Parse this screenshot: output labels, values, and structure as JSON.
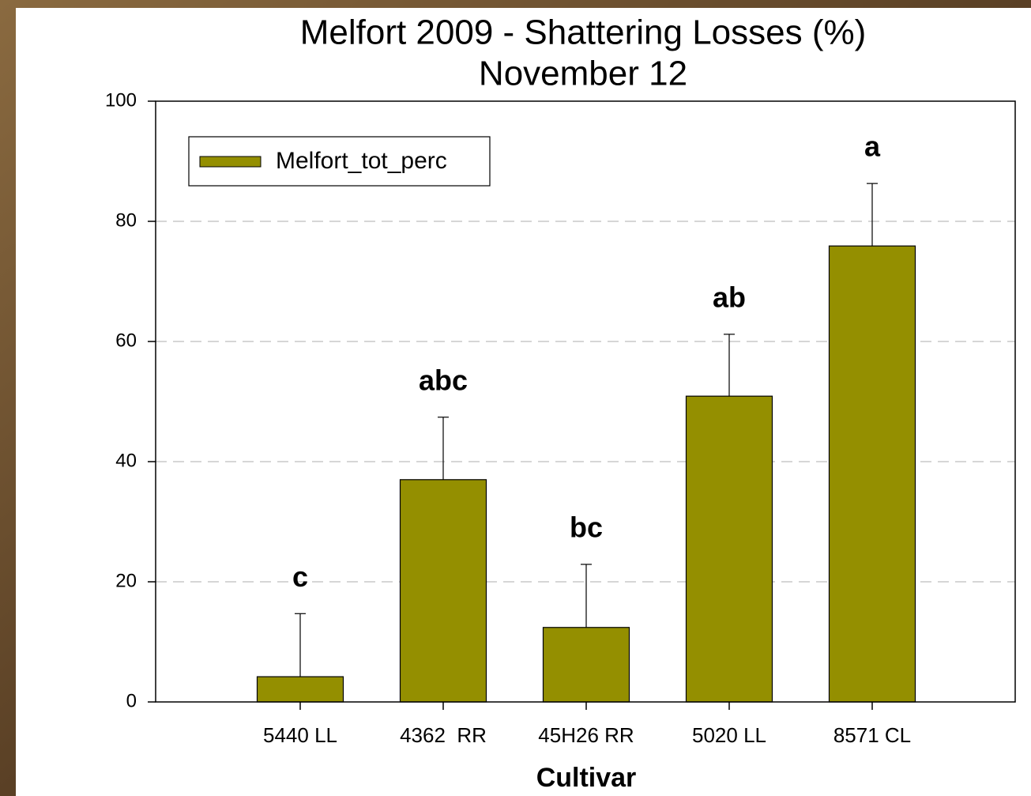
{
  "chart_data": {
    "type": "bar",
    "title": "Melfort 2009 - Shattering Losses (%)",
    "subtitle": "November 12",
    "x_label": "Cultivar",
    "categories": [
      "5440 LL",
      "4362  RR",
      "45H26 RR",
      "5020 LL",
      "8571 CL"
    ],
    "series": [
      {
        "name": "Melfort_tot_perc",
        "color": "#948f00",
        "values": [
          4.2,
          37.0,
          12.4,
          50.9,
          75.9
        ],
        "errors": [
          10.5,
          10.4,
          10.5,
          10.3,
          10.4
        ]
      }
    ],
    "significance_letters": [
      "c",
      "abc",
      "bc",
      "ab",
      "a"
    ],
    "ylim": [
      0,
      100
    ],
    "yticks": [
      0,
      20,
      40,
      60,
      80,
      100
    ],
    "grid": true,
    "legend": "upper left"
  }
}
